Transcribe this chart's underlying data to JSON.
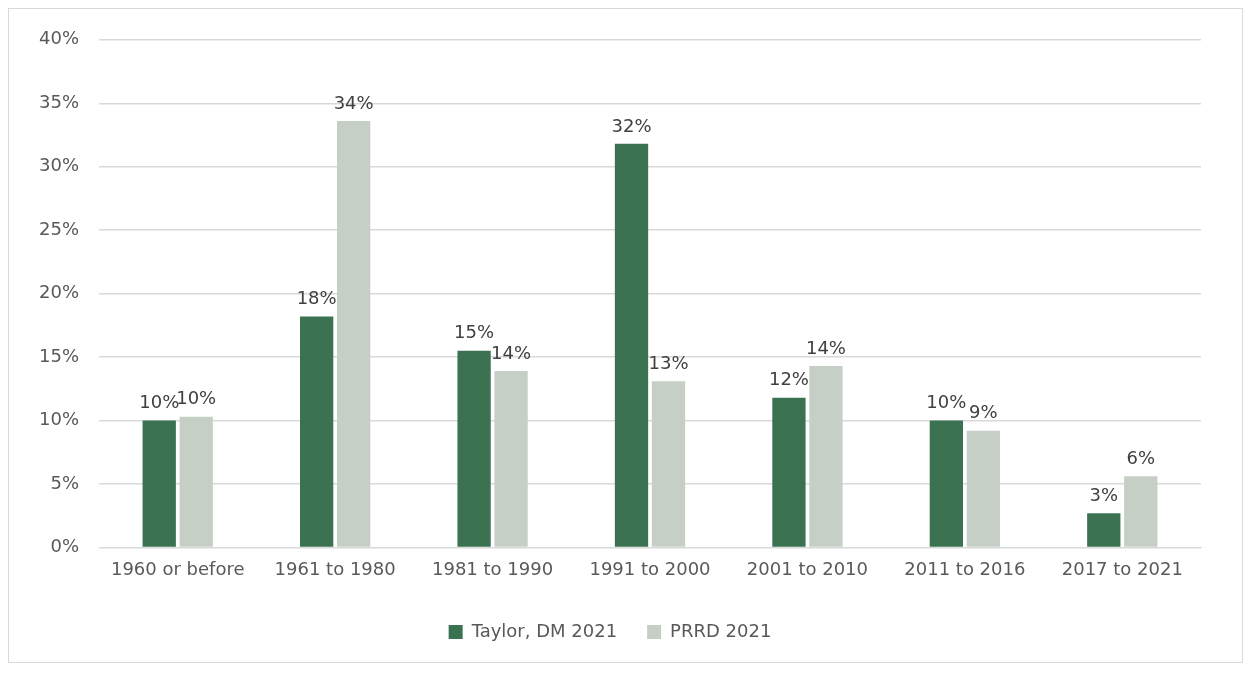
{
  "chart_data": {
    "type": "bar",
    "categories": [
      "1960 or before",
      "1961 to 1980",
      "1981 to 1990",
      "1991 to 2000",
      "2001 to 2010",
      "2011 to 2016",
      "2017 to 2021"
    ],
    "series": [
      {
        "name": "Taylor, DM 2021",
        "color": "#3b7252",
        "values": [
          10.0,
          18.2,
          15.5,
          31.8,
          11.8,
          10.0,
          2.7
        ],
        "value_labels": [
          "10%",
          "18%",
          "15%",
          "32%",
          "12%",
          "10%",
          "3%"
        ]
      },
      {
        "name": "PRRD 2021",
        "color": "#c5cfc6",
        "values": [
          10.3,
          33.6,
          13.9,
          13.1,
          14.3,
          9.2,
          5.6
        ],
        "value_labels": [
          "10%",
          "34%",
          "14%",
          "13%",
          "14%",
          "9%",
          "6%"
        ]
      }
    ],
    "ylim": [
      0,
      40
    ],
    "yticks": [
      {
        "value": 0,
        "label": "0%"
      },
      {
        "value": 5,
        "label": "5%"
      },
      {
        "value": 10,
        "label": "10%"
      },
      {
        "value": 15,
        "label": "15%"
      },
      {
        "value": 20,
        "label": "20%"
      },
      {
        "value": 25,
        "label": "25%"
      },
      {
        "value": 30,
        "label": "30%"
      },
      {
        "value": 35,
        "label": "35%"
      },
      {
        "value": 40,
        "label": "40%"
      }
    ],
    "grid": "y",
    "legend": "bottom"
  }
}
